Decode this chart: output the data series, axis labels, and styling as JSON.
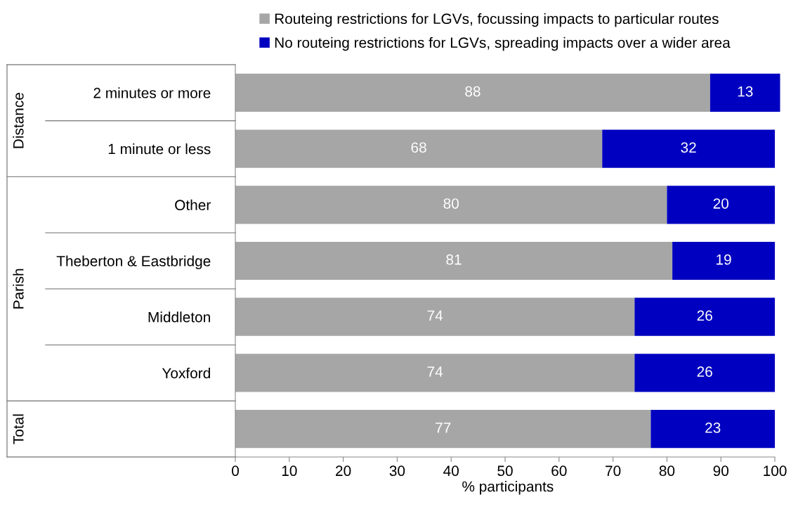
{
  "chart_data": {
    "type": "bar",
    "orientation": "horizontal",
    "stacked": true,
    "xlabel": "% participants",
    "categories": [
      "2 minutes or more",
      "1 minute or less",
      "Other",
      "Theberton & Eastbridge",
      "Middleton",
      "Yoxford",
      null
    ],
    "series": [
      {
        "name": "Routeing restrictions for LGVs, focussing impacts to particular routes",
        "color": "#a6a6a6",
        "values": [
          88,
          68,
          80,
          81,
          74,
          74,
          77
        ]
      },
      {
        "name": "No routeing restrictions for LGVs, spreading impacts over a wider area",
        "color": "#0000c0",
        "values": [
          13,
          32,
          20,
          19,
          26,
          26,
          23
        ]
      }
    ],
    "xlim": [
      0,
      101
    ],
    "xticks": [
      0,
      10,
      20,
      30,
      40,
      50,
      60,
      70,
      80,
      90,
      100
    ],
    "data_labels": true,
    "legend": "top right",
    "grid": false,
    "annotations": [
      "Distance",
      "Parish",
      "Total"
    ]
  }
}
